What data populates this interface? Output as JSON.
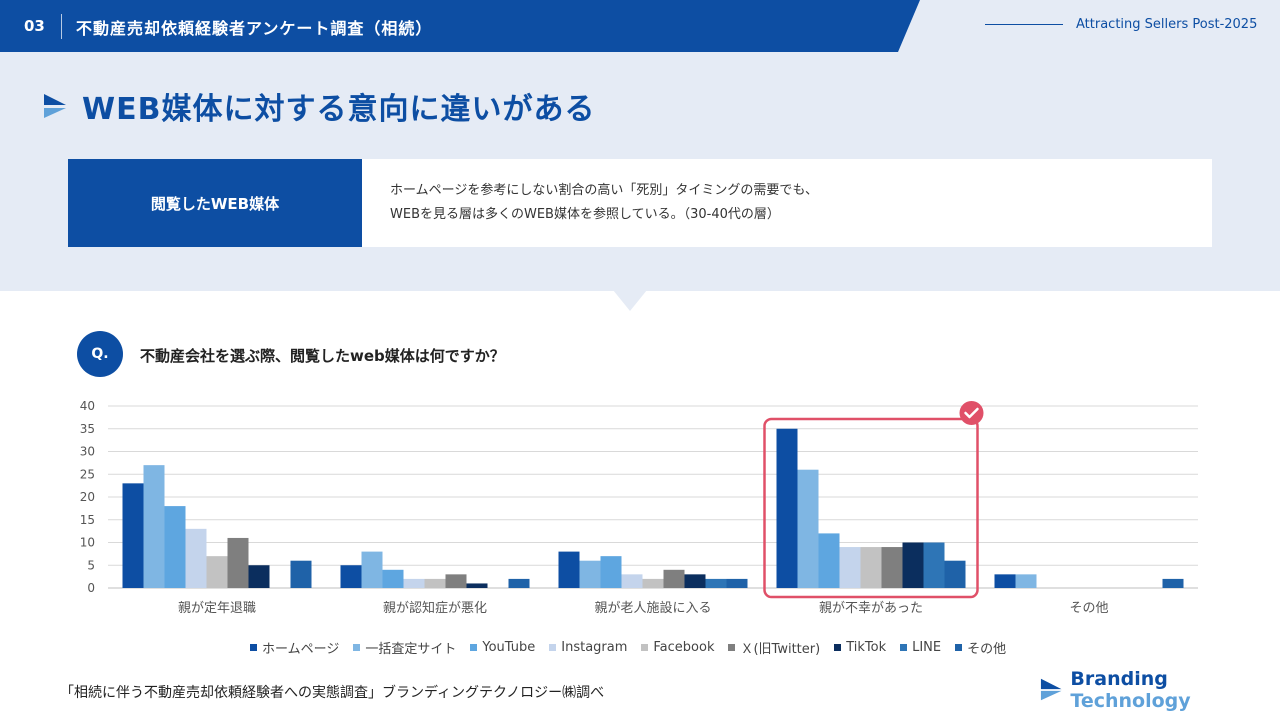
{
  "header": {
    "slide_number": "03",
    "title": "不動産売却依頼経験者アンケート調査（相続）",
    "tagline": "Attracting Sellers Post-2025"
  },
  "heading": "WEB媒体に対する意向に違いがある",
  "summary": {
    "label": "閲覧したWEB媒体",
    "line1": "ホームページを参考にしない割合の高い「死別」タイミングの需要でも、",
    "line2": "WEBを見る層は多くのWEB媒体を参照している。（30-40代の層）"
  },
  "question": {
    "badge": "Q.",
    "text": "不動産会社を選ぶ際、閲覧したweb媒体は何ですか？"
  },
  "chart_data": {
    "type": "bar",
    "categories": [
      "親が定年退職",
      "親が認知症が悪化",
      "親が老人施設に入る",
      "親が不幸があった",
      "その他"
    ],
    "ylim": [
      0,
      40
    ],
    "yticks": [
      0,
      5,
      10,
      15,
      20,
      25,
      30,
      35,
      40
    ],
    "grid": true,
    "legend_position": "bottom",
    "highlight_category": "親が不幸があった",
    "highlight_color": "#e05068",
    "series": [
      {
        "name": "ホームページ",
        "color": "#0d4ea3",
        "values": [
          23,
          5,
          8,
          35,
          3
        ]
      },
      {
        "name": "一括査定サイト",
        "color": "#7fb6e3",
        "values": [
          27,
          8,
          6,
          26,
          3
        ]
      },
      {
        "name": "YouTube",
        "color": "#5ea6e0",
        "values": [
          18,
          4,
          7,
          12,
          0
        ]
      },
      {
        "name": "Instagram",
        "color": "#c4d4ec",
        "values": [
          13,
          2,
          3,
          9,
          0
        ]
      },
      {
        "name": "Facebook",
        "color": "#c2c2c2",
        "values": [
          7,
          2,
          2,
          9,
          0
        ]
      },
      {
        "name": "Ｘ(旧Twitter)",
        "color": "#7f7f7f",
        "values": [
          11,
          3,
          4,
          9,
          0
        ]
      },
      {
        "name": "TikTok",
        "color": "#0b2e5e",
        "values": [
          5,
          1,
          3,
          10,
          0
        ]
      },
      {
        "name": "LINE",
        "color": "#2e75b6",
        "values": [
          0,
          0,
          2,
          10,
          0
        ]
      },
      {
        "name": "その他",
        "color": "#1f62a8",
        "values": [
          6,
          2,
          2,
          6,
          2
        ]
      }
    ]
  },
  "source": "「相続に伴う不動産売却依頼経験者への実態調査」ブランディングテクノロジー㈱調べ",
  "logo": {
    "word1": "Branding",
    "word2": "Technology"
  }
}
